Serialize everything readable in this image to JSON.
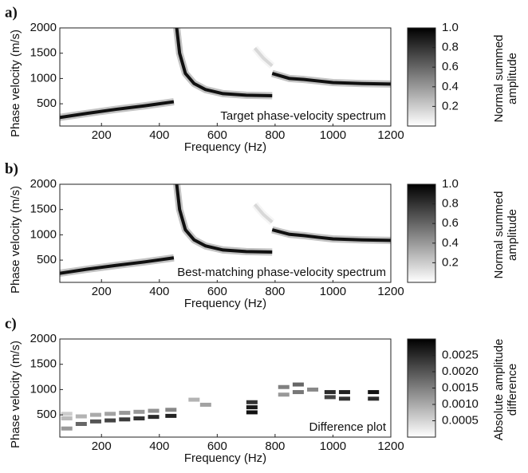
{
  "chart_data": [
    {
      "type": "line",
      "label": "a)",
      "annotation": "Target phase-velocity spectrum",
      "x_label": "Frequency (Hz)",
      "y_label": "Phase velocity (m/s)",
      "xlim": [
        56,
        1200
      ],
      "ylim": [
        60,
        2000
      ],
      "xticks": [
        200,
        400,
        600,
        800,
        1000,
        1200
      ],
      "yticks": [
        500,
        1000,
        1500,
        2000
      ],
      "colorbar_label": [
        "Normal summed",
        "amplitude"
      ],
      "clim": [
        0,
        1
      ],
      "cticks": [
        0.2,
        0.4,
        0.6,
        0.8,
        {
          "value": 1,
          "label": "1.0"
        }
      ],
      "series": [
        {
          "color": "#111111",
          "x": [
            56,
            150,
            250,
            350,
            450
          ],
          "values": [
            230,
            310,
            390,
            460,
            540
          ]
        },
        {
          "color": "#111111",
          "x": [
            460,
            470,
            490,
            520,
            560,
            620,
            700,
            790
          ],
          "values": [
            2000,
            1500,
            1100,
            900,
            780,
            700,
            670,
            660
          ]
        },
        {
          "color": "#d8d8d8",
          "x": [
            730,
            760,
            790
          ],
          "values": [
            1600,
            1400,
            1250
          ]
        },
        {
          "color": "#111111",
          "x": [
            790,
            850,
            900,
            950,
            1000,
            1100,
            1200
          ],
          "values": [
            1100,
            1000,
            980,
            950,
            920,
            900,
            890
          ]
        }
      ]
    },
    {
      "type": "line",
      "label": "b)",
      "annotation": "Best-matching phase-velocity spectrum",
      "x_label": "Frequency (Hz)",
      "y_label": "Phase velocity (m/s)",
      "xlim": [
        56,
        1200
      ],
      "ylim": [
        60,
        2000
      ],
      "xticks": [
        200,
        400,
        600,
        800,
        1000,
        1200
      ],
      "yticks": [
        500,
        1000,
        1500,
        2000
      ],
      "colorbar_label": [
        "Normal summed",
        "amplitude"
      ],
      "clim": [
        0,
        1
      ],
      "cticks": [
        0.2,
        0.4,
        0.6,
        0.8,
        {
          "value": 1,
          "label": "1.0"
        }
      ],
      "series": [
        {
          "color": "#111111",
          "x": [
            56,
            150,
            250,
            350,
            450
          ],
          "values": [
            240,
            320,
            395,
            465,
            545
          ]
        },
        {
          "color": "#111111",
          "x": [
            460,
            470,
            490,
            520,
            560,
            620,
            700,
            790
          ],
          "values": [
            2000,
            1500,
            1100,
            900,
            780,
            700,
            670,
            660
          ]
        },
        {
          "color": "#d8d8d8",
          "x": [
            730,
            760,
            790
          ],
          "values": [
            1600,
            1400,
            1250
          ]
        },
        {
          "color": "#111111",
          "x": [
            790,
            850,
            900,
            950,
            1000,
            1100,
            1200
          ],
          "values": [
            1100,
            1010,
            985,
            950,
            920,
            900,
            890
          ]
        }
      ]
    },
    {
      "type": "scatter",
      "label": "c)",
      "annotation": "Difference plot",
      "x_label": "Frequency (Hz)",
      "y_label": "Phase velocity (m/s)",
      "xlim": [
        56,
        1200
      ],
      "ylim": [
        60,
        2000
      ],
      "xticks": [
        200,
        400,
        600,
        800,
        1000,
        1200
      ],
      "yticks": [
        500,
        1000,
        1500,
        2000
      ],
      "colorbar_label": [
        "Absolute amplitude",
        "difference"
      ],
      "clim": [
        0,
        0.003
      ],
      "cticks": [
        0.0005,
        {
          "value": 0.001,
          "label": "0.0010"
        },
        0.0015,
        {
          "value": 0.002,
          "label": "0.0020"
        },
        0.0025
      ],
      "x": [
        80,
        80,
        80,
        130,
        130,
        180,
        180,
        230,
        230,
        280,
        280,
        330,
        330,
        380,
        380,
        440,
        440,
        520,
        560,
        720,
        720,
        720,
        830,
        830,
        880,
        880,
        930,
        990,
        990,
        1040,
        1040,
        1140,
        1140
      ],
      "values": [
        230,
        430,
        520,
        320,
        470,
        370,
        500,
        390,
        520,
        410,
        540,
        430,
        560,
        460,
        580,
        480,
        600,
        800,
        700,
        550,
        650,
        750,
        900,
        1050,
        950,
        1100,
        1000,
        850,
        950,
        820,
        950,
        820,
        950
      ],
      "amplitude": [
        0.0012,
        0.0008,
        0.0006,
        0.0018,
        0.0009,
        0.002,
        0.001,
        0.0022,
        0.0011,
        0.0023,
        0.0012,
        0.0024,
        0.0012,
        0.0025,
        0.0013,
        0.0026,
        0.0014,
        0.0009,
        0.0011,
        0.0028,
        0.0027,
        0.0024,
        0.0012,
        0.0015,
        0.0016,
        0.0018,
        0.0014,
        0.0022,
        0.0025,
        0.0024,
        0.0026,
        0.0025,
        0.0028
      ]
    }
  ]
}
